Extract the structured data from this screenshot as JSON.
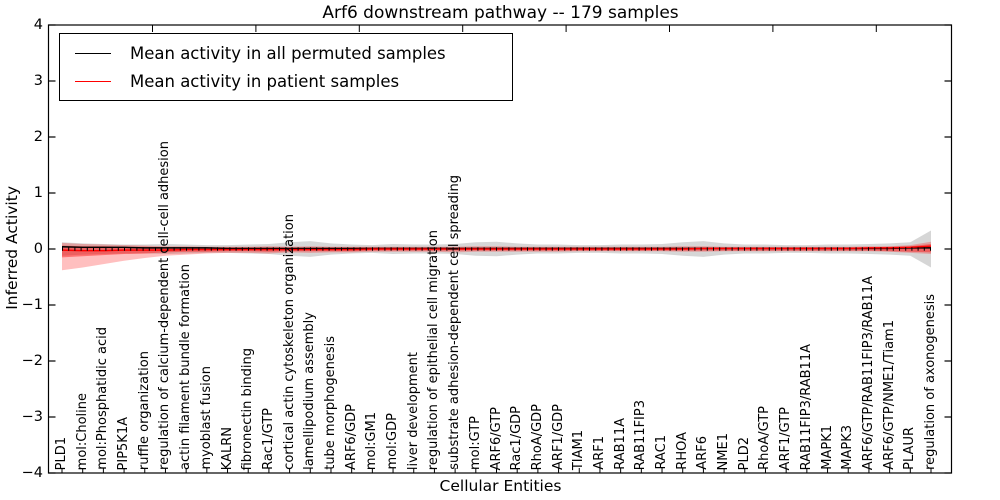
{
  "title": "Arf6 downstream pathway -- 179 samples",
  "legend": {
    "items": [
      {
        "label": "Mean activity in all permuted samples",
        "color": "#000000"
      },
      {
        "label": "Mean activity in patient samples",
        "color": "#ff0000"
      }
    ]
  },
  "chart_data": {
    "type": "line",
    "title": "Arf6 downstream pathway -- 179 samples",
    "xlabel": "Cellular Entities",
    "ylabel": "Inferred Activity",
    "ylim": [
      -4,
      4
    ],
    "ytick_labels": [
      "4",
      "3",
      "2",
      "1",
      "0",
      "−1",
      "−2",
      "−3",
      "−4"
    ],
    "grid": false,
    "legend_position": "upper left",
    "zero_line_style": "dotted",
    "categories": [
      "PLD1",
      "mol:Choline",
      "mol:Phosphatidic acid",
      "PIP5K1A",
      "ruffle organization",
      "regulation of calcium-dependent cell-cell adhesion",
      "actin filament bundle formation",
      "myoblast fusion",
      "KALRN",
      "fibronectin binding",
      "Rac1/GTP",
      "cortical actin cytoskeleton organization",
      "lamellipodium assembly",
      "tube morphogenesis",
      "ARF6/GDP",
      "mol:GM1",
      "mol:GDP",
      "liver development",
      "regulation of epithelial cell migration",
      "substrate adhesion-dependent cell spreading",
      "mol:GTP",
      "ARF6/GTP",
      "Rac1/GDP",
      "RhoA/GDP",
      "ARF1/GDP",
      "TIAM1",
      "ARF1",
      "RAB11A",
      "RAB11FIP3",
      "RAC1",
      "RHOA",
      "ARF6",
      "NME1",
      "PLD2",
      "RhoA/GTP",
      "ARF1/GTP",
      "RAB11FIP3/RAB11A",
      "MAPK1",
      "MAPK3",
      "ARF6/GTP/RAB11FIP3/RAB11A",
      "ARF6/GTP/NME1/Tiam1",
      "PLAUR",
      "regulation of axonogenesis"
    ],
    "series": [
      {
        "name": "Mean activity in all permuted samples",
        "color": "#000000",
        "values": [
          0.04,
          0.03,
          0.03,
          0.03,
          0.02,
          0.02,
          0.02,
          0.02,
          0.01,
          0.01,
          0.01,
          0.01,
          0.01,
          0.01,
          0.01,
          0.01,
          0.01,
          0.01,
          0.01,
          0.01,
          0.01,
          0.01,
          0.01,
          0.01,
          0.01,
          0.01,
          0.01,
          0.01,
          0.01,
          0.01,
          0.01,
          0.01,
          0.01,
          0.01,
          0.01,
          0.01,
          0.01,
          0.01,
          0.01,
          0.01,
          0.01,
          0.02,
          0.02
        ]
      },
      {
        "name": "Mean activity in patient samples",
        "color": "#ff0000",
        "values": [
          -0.02,
          -0.03,
          -0.03,
          -0.02,
          -0.02,
          -0.02,
          -0.01,
          -0.01,
          -0.01,
          -0.01,
          -0.01,
          -0.01,
          -0.01,
          -0.01,
          -0.01,
          0.0,
          0.0,
          0.0,
          0.0,
          0.0,
          0.0,
          0.0,
          0.0,
          0.0,
          0.0,
          0.0,
          0.0,
          0.0,
          0.0,
          0.0,
          0.0,
          0.01,
          0.01,
          0.01,
          0.01,
          0.01,
          0.01,
          0.01,
          0.01,
          0.02,
          0.02,
          0.03,
          0.05
        ]
      }
    ],
    "bands": [
      {
        "name": "permuted-std-band",
        "color": "rgba(0,0,0,0.16)",
        "upper": [
          0.12,
          0.1,
          0.09,
          0.08,
          0.08,
          0.09,
          0.08,
          0.07,
          0.07,
          0.08,
          0.09,
          0.12,
          0.14,
          0.1,
          0.08,
          0.07,
          0.09,
          0.08,
          0.08,
          0.09,
          0.12,
          0.13,
          0.1,
          0.08,
          0.08,
          0.07,
          0.07,
          0.08,
          0.08,
          0.09,
          0.12,
          0.14,
          0.1,
          0.08,
          0.08,
          0.07,
          0.07,
          0.08,
          0.08,
          0.09,
          0.1,
          0.12,
          0.33
        ],
        "lower": [
          -0.12,
          -0.1,
          -0.09,
          -0.08,
          -0.08,
          -0.09,
          -0.08,
          -0.07,
          -0.07,
          -0.08,
          -0.09,
          -0.12,
          -0.14,
          -0.1,
          -0.08,
          -0.07,
          -0.09,
          -0.08,
          -0.08,
          -0.09,
          -0.12,
          -0.13,
          -0.1,
          -0.08,
          -0.08,
          -0.07,
          -0.07,
          -0.08,
          -0.08,
          -0.09,
          -0.12,
          -0.14,
          -0.1,
          -0.08,
          -0.08,
          -0.07,
          -0.07,
          -0.08,
          -0.08,
          -0.09,
          -0.1,
          -0.12,
          -0.33
        ]
      },
      {
        "name": "patient-std-outer-band",
        "color": "rgba(255,0,0,0.25)",
        "upper": [
          0.11,
          0.09,
          0.08,
          0.07,
          0.06,
          0.05,
          0.05,
          0.04,
          0.04,
          0.04,
          0.05,
          0.04,
          0.05,
          0.04,
          0.04,
          0.04,
          0.04,
          0.04,
          0.04,
          0.04,
          0.05,
          0.05,
          0.04,
          0.04,
          0.04,
          0.04,
          0.04,
          0.04,
          0.04,
          0.04,
          0.05,
          0.05,
          0.04,
          0.04,
          0.04,
          0.04,
          0.04,
          0.04,
          0.04,
          0.05,
          0.05,
          0.07,
          0.13
        ],
        "lower": [
          -0.38,
          -0.33,
          -0.27,
          -0.21,
          -0.16,
          -0.12,
          -0.1,
          -0.08,
          -0.07,
          -0.07,
          -0.08,
          -0.06,
          -0.07,
          -0.06,
          -0.06,
          -0.05,
          -0.05,
          -0.05,
          -0.05,
          -0.06,
          -0.05,
          -0.05,
          -0.05,
          -0.05,
          -0.05,
          -0.04,
          -0.04,
          -0.04,
          -0.04,
          -0.04,
          -0.05,
          -0.05,
          -0.04,
          -0.04,
          -0.04,
          -0.04,
          -0.04,
          -0.04,
          -0.04,
          -0.04,
          -0.05,
          -0.07,
          -0.09
        ]
      },
      {
        "name": "patient-std-inner-band",
        "color": "rgba(255,0,0,0.40)",
        "upper": [
          0.06,
          0.05,
          0.05,
          0.04,
          0.04,
          0.03,
          0.03,
          0.03,
          0.03,
          0.03,
          0.03,
          0.03,
          0.03,
          0.03,
          0.03,
          0.03,
          0.03,
          0.03,
          0.03,
          0.03,
          0.03,
          0.03,
          0.03,
          0.03,
          0.03,
          0.03,
          0.03,
          0.03,
          0.03,
          0.03,
          0.03,
          0.03,
          0.03,
          0.03,
          0.03,
          0.03,
          0.03,
          0.03,
          0.03,
          0.03,
          0.04,
          0.05,
          0.09
        ],
        "lower": [
          -0.15,
          -0.13,
          -0.11,
          -0.09,
          -0.08,
          -0.06,
          -0.05,
          -0.05,
          -0.04,
          -0.04,
          -0.05,
          -0.04,
          -0.04,
          -0.04,
          -0.04,
          -0.03,
          -0.03,
          -0.03,
          -0.03,
          -0.03,
          -0.03,
          -0.03,
          -0.03,
          -0.03,
          -0.03,
          -0.03,
          -0.03,
          -0.03,
          -0.03,
          -0.03,
          -0.03,
          -0.03,
          -0.03,
          -0.03,
          -0.03,
          -0.03,
          -0.03,
          -0.03,
          -0.03,
          -0.03,
          -0.04,
          -0.05,
          -0.06
        ]
      }
    ]
  }
}
